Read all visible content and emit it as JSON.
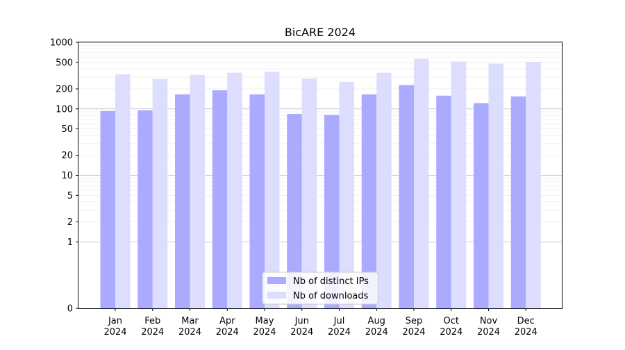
{
  "chart_data": {
    "type": "bar",
    "title": "BicARE 2024",
    "xlabel": "",
    "ylabel": "",
    "y_scale": "symlog",
    "ylim": [
      0,
      1000
    ],
    "y_ticks": [
      0,
      1,
      2,
      5,
      10,
      20,
      50,
      100,
      200,
      500,
      1000
    ],
    "categories": [
      [
        "Jan",
        "2024"
      ],
      [
        "Feb",
        "2024"
      ],
      [
        "Mar",
        "2024"
      ],
      [
        "Apr",
        "2024"
      ],
      [
        "May",
        "2024"
      ],
      [
        "Jun",
        "2024"
      ],
      [
        "Jul",
        "2024"
      ],
      [
        "Aug",
        "2024"
      ],
      [
        "Sep",
        "2024"
      ],
      [
        "Oct",
        "2024"
      ],
      [
        "Nov",
        "2024"
      ],
      [
        "Dec",
        "2024"
      ]
    ],
    "series": [
      {
        "name": "Nb of distinct IPs",
        "color": "#aaaaff",
        "values": [
          93,
          95,
          165,
          190,
          165,
          84,
          81,
          165,
          228,
          158,
          122,
          154
        ]
      },
      {
        "name": "Nb of downloads",
        "color": "#ddddff",
        "values": [
          330,
          280,
          325,
          350,
          360,
          285,
          255,
          350,
          565,
          515,
          480,
          510
        ]
      }
    ],
    "grid": true,
    "legend_position": "bottom-center"
  }
}
